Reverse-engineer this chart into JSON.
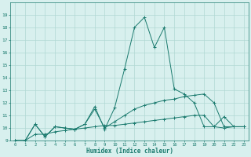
{
  "xlabel": "Humidex (Indice chaleur)",
  "x": [
    0,
    1,
    2,
    3,
    4,
    5,
    6,
    7,
    8,
    9,
    10,
    11,
    12,
    13,
    14,
    15,
    16,
    17,
    18,
    19,
    20,
    21,
    22,
    23
  ],
  "line1": [
    9,
    9,
    10.3,
    9.3,
    10.1,
    10.0,
    9.9,
    10.3,
    11.7,
    9.9,
    11.6,
    14.7,
    18.0,
    18.8,
    16.4,
    18.0,
    13.1,
    12.7,
    12.0,
    10.1,
    10.1,
    10.9,
    10.1,
    10.1
  ],
  "line2": [
    9,
    9,
    10.3,
    9.3,
    10.1,
    10.0,
    9.9,
    10.3,
    11.5,
    10.0,
    10.5,
    11.0,
    11.5,
    11.8,
    12.0,
    12.2,
    12.3,
    12.5,
    12.6,
    12.7,
    12.0,
    10.1,
    10.1,
    10.1
  ],
  "line3": [
    9,
    9,
    9.5,
    9.5,
    9.7,
    9.8,
    9.9,
    10.0,
    10.1,
    10.2,
    10.2,
    10.3,
    10.4,
    10.5,
    10.6,
    10.7,
    10.8,
    10.9,
    11.0,
    11.0,
    10.1,
    10.0,
    10.1,
    10.1
  ],
  "line_color": "#1a7a6e",
  "bg_color": "#d8f0ee",
  "grid_color": "#b0d8d4",
  "ylim": [
    9,
    20
  ],
  "yticks": [
    9,
    10,
    11,
    12,
    13,
    14,
    15,
    16,
    17,
    18,
    19
  ],
  "xticks": [
    0,
    1,
    2,
    3,
    4,
    5,
    6,
    7,
    8,
    9,
    10,
    11,
    12,
    13,
    14,
    15,
    16,
    17,
    18,
    19,
    20,
    21,
    22,
    23
  ]
}
